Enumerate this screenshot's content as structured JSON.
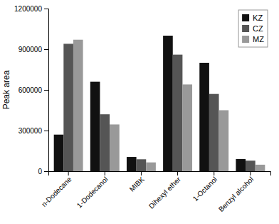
{
  "chart_data": {
    "type": "bar",
    "categories": [
      "n-Dodecane",
      "1-Dodecanol",
      "MIBK",
      "Dihexyl ether",
      "1-Octanol",
      "Benzyl alcohol"
    ],
    "series": [
      {
        "name": "KZ",
        "color": "#111111",
        "values": [
          270000,
          660000,
          105000,
          1000000,
          800000,
          90000
        ]
      },
      {
        "name": "CZ",
        "color": "#555555",
        "values": [
          940000,
          420000,
          88000,
          860000,
          570000,
          78000
        ]
      },
      {
        "name": "MZ",
        "color": "#999999",
        "values": [
          970000,
          345000,
          65000,
          640000,
          450000,
          48000
        ]
      }
    ],
    "ylabel": "Peak area",
    "ylim": [
      0,
      1200000
    ],
    "yticks": [
      0,
      300000,
      600000,
      900000,
      1200000
    ],
    "grid": false,
    "legend": "upper right"
  }
}
